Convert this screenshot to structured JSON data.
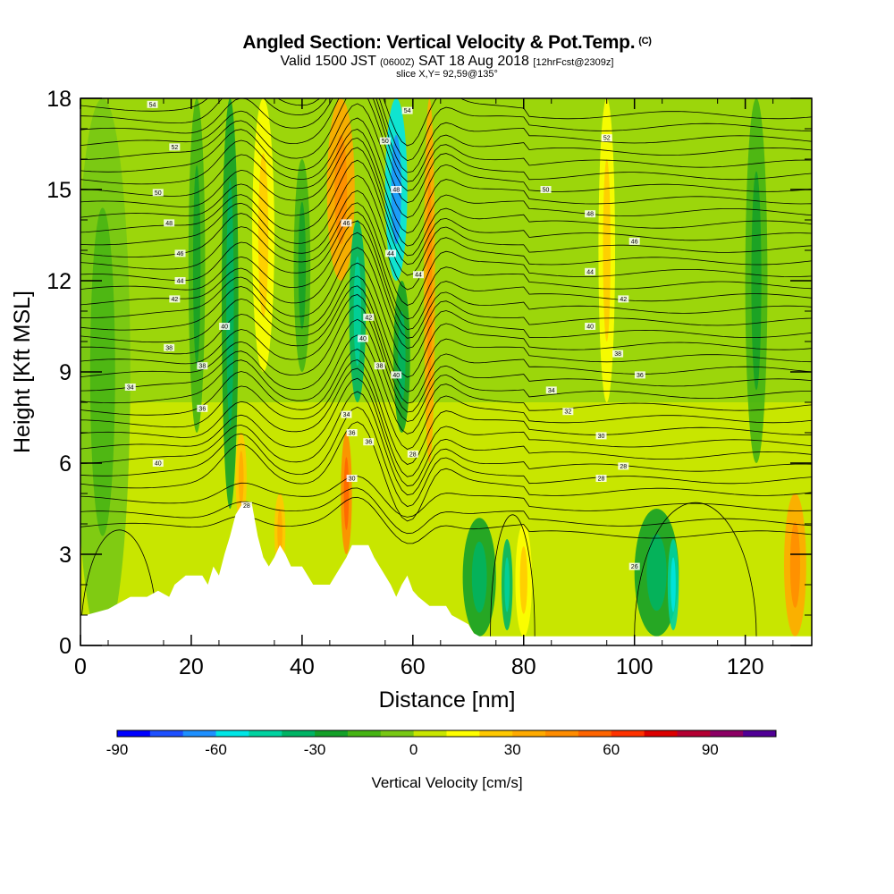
{
  "title": {
    "main": "Angled Section: Vertical Velocity & Pot.Temp.",
    "main_tag": "(C)",
    "valid_prefix": "Valid 1500 JST",
    "valid_zulu": "(0600Z)",
    "valid_date": "SAT 18 Aug 2018",
    "forecast": "[12hrFcst@2309z]",
    "slice": "slice X,Y= 92,59@135°"
  },
  "chart_data": {
    "type": "heatmap",
    "xlabel": "Distance [nm]",
    "ylabel": "Height [Kft MSL]",
    "xlim": [
      0,
      132
    ],
    "ylim": [
      0,
      18
    ],
    "x_ticks": [
      "0",
      "20",
      "40",
      "60",
      "80",
      "100",
      "120"
    ],
    "y_ticks": [
      "0",
      "3",
      "6",
      "9",
      "12",
      "15",
      "18"
    ],
    "colorbar": {
      "label": "Vertical Velocity [cm/s]",
      "range": [
        -90,
        110
      ],
      "step": 10,
      "tick_labels": [
        "-90",
        "-60",
        "-30",
        "0",
        "30",
        "60",
        "90"
      ],
      "colors": [
        "#0000ff",
        "#1e50ff",
        "#1e90ff",
        "#00e6e6",
        "#00d2a0",
        "#00b464",
        "#14a028",
        "#46b414",
        "#78c814",
        "#c8e600",
        "#ffff00",
        "#ffc800",
        "#ffaa00",
        "#ff8c00",
        "#ff6400",
        "#ff3200",
        "#dc0000",
        "#b40032",
        "#8c0064",
        "#500096"
      ]
    },
    "vertical_velocity_columns_cm_s": [
      {
        "x": 4,
        "w": 10,
        "z0": 0,
        "z1": 18,
        "v": -5
      },
      {
        "x": 21,
        "w": 3,
        "z0": 7,
        "z1": 18,
        "v": -20
      },
      {
        "x": 27,
        "w": 3,
        "z0": 4.5,
        "z1": 18,
        "v": -25
      },
      {
        "x": 29,
        "w": 2,
        "z0": 4,
        "z1": 7,
        "v": 25
      },
      {
        "x": 33,
        "w": 4,
        "z0": 9,
        "z1": 18,
        "v": 15
      },
      {
        "x": 36,
        "w": 2,
        "z0": 2.5,
        "z1": 5,
        "v": 25
      },
      {
        "x": 40,
        "w": 3,
        "z0": 9,
        "z1": 16,
        "v": -20
      },
      {
        "x": 47,
        "w": 5,
        "z0": 12,
        "z1": 18,
        "v": 35
      },
      {
        "x": 48,
        "w": 2,
        "z0": 3,
        "z1": 7,
        "v": 45
      },
      {
        "x": 50,
        "w": 3,
        "z0": 8,
        "z1": 14,
        "v": -35
      },
      {
        "x": 57,
        "w": 4,
        "z0": 12,
        "z1": 18,
        "v": -55
      },
      {
        "x": 58,
        "w": 3,
        "z0": 7,
        "z1": 12,
        "v": -25
      },
      {
        "x": 63,
        "w": 2,
        "z0": 6,
        "z1": 18,
        "v": 35
      },
      {
        "x": 72,
        "w": 6,
        "z0": 0.3,
        "z1": 4.2,
        "v": -30
      },
      {
        "x": 77,
        "w": 2,
        "z0": 0.5,
        "z1": 3.5,
        "v": -40
      },
      {
        "x": 80,
        "w": 3,
        "z0": 0.3,
        "z1": 4,
        "v": 15
      },
      {
        "x": 95,
        "w": 3,
        "z0": 8,
        "z1": 18,
        "v": 15
      },
      {
        "x": 104,
        "w": 8,
        "z0": 0.3,
        "z1": 4.5,
        "v": -30
      },
      {
        "x": 107,
        "w": 2,
        "z0": 0.5,
        "z1": 3.5,
        "v": -45
      },
      {
        "x": 122,
        "w": 4,
        "z0": 6,
        "z1": 18,
        "v": -15
      },
      {
        "x": 129,
        "w": 4,
        "z0": 0.3,
        "z1": 5,
        "v": 30
      }
    ],
    "terrain_kft": [
      [
        0,
        1
      ],
      [
        1,
        1
      ],
      [
        5,
        1.2
      ],
      [
        9,
        1.6
      ],
      [
        12,
        1.6
      ],
      [
        14,
        1.8
      ],
      [
        16,
        1.6
      ],
      [
        17,
        2.0
      ],
      [
        19,
        2.3
      ],
      [
        22,
        2.3
      ],
      [
        23,
        2.0
      ],
      [
        24,
        2.6
      ],
      [
        25,
        2.3
      ],
      [
        26,
        3.0
      ],
      [
        27,
        3.6
      ],
      [
        28,
        4.3
      ],
      [
        29,
        4.6
      ],
      [
        31,
        4.6
      ],
      [
        32,
        3.6
      ],
      [
        33,
        2.9
      ],
      [
        34,
        2.6
      ],
      [
        35,
        2.9
      ],
      [
        36,
        3.3
      ],
      [
        37,
        3.0
      ],
      [
        38,
        2.6
      ],
      [
        40,
        2.6
      ],
      [
        41,
        2.3
      ],
      [
        42,
        2.0
      ],
      [
        45,
        2.0
      ],
      [
        46,
        2.3
      ],
      [
        47,
        2.6
      ],
      [
        48,
        2.9
      ],
      [
        49,
        3.3
      ],
      [
        52,
        3.3
      ],
      [
        53,
        2.9
      ],
      [
        54,
        2.6
      ],
      [
        55,
        2.3
      ],
      [
        56,
        2.0
      ],
      [
        57,
        1.6
      ],
      [
        58,
        2.0
      ],
      [
        59,
        2.3
      ],
      [
        60,
        1.8
      ],
      [
        61,
        1.6
      ],
      [
        63,
        1.3
      ],
      [
        66,
        1.3
      ],
      [
        67,
        1.0
      ],
      [
        70,
        0.7
      ],
      [
        71,
        0.4
      ],
      [
        72,
        0.3
      ],
      [
        132,
        0.3
      ]
    ],
    "pot_temp_contours": {
      "z_start_kft": [
        3.9,
        4.3,
        4.8,
        5.3,
        5.7,
        6.1,
        6.5,
        6.9,
        7.3,
        7.7,
        8.1,
        8.5,
        8.9,
        9.3,
        9.7,
        10.1,
        10.5,
        10.9,
        11.3,
        11.7,
        12.1,
        12.5,
        12.9,
        13.3,
        13.7,
        14.1,
        14.5,
        14.9,
        15.3,
        15.7,
        16.1,
        16.5,
        16.9,
        17.3,
        17.7
      ],
      "labels": [
        {
          "x": 14,
          "z": 6.0,
          "t": "40"
        },
        {
          "x": 9,
          "z": 8.5,
          "t": "34"
        },
        {
          "x": 22,
          "z": 7.8,
          "t": "36"
        },
        {
          "x": 22,
          "z": 9.2,
          "t": "38"
        },
        {
          "x": 16,
          "z": 9.8,
          "t": "38"
        },
        {
          "x": 26,
          "z": 10.5,
          "t": "40"
        },
        {
          "x": 17,
          "z": 11.4,
          "t": "42"
        },
        {
          "x": 18,
          "z": 12.0,
          "t": "44"
        },
        {
          "x": 18,
          "z": 12.9,
          "t": "46"
        },
        {
          "x": 16,
          "z": 13.9,
          "t": "48"
        },
        {
          "x": 14,
          "z": 14.9,
          "t": "50"
        },
        {
          "x": 17,
          "z": 16.4,
          "t": "52"
        },
        {
          "x": 13,
          "z": 17.8,
          "t": "54"
        },
        {
          "x": 48,
          "z": 7.6,
          "t": "34"
        },
        {
          "x": 49,
          "z": 7.0,
          "t": "36"
        },
        {
          "x": 52,
          "z": 6.7,
          "t": "36"
        },
        {
          "x": 49,
          "z": 5.5,
          "t": "30"
        },
        {
          "x": 30,
          "z": 4.6,
          "t": "28"
        },
        {
          "x": 51,
          "z": 10.1,
          "t": "40"
        },
        {
          "x": 52,
          "z": 10.8,
          "t": "42"
        },
        {
          "x": 54,
          "z": 9.2,
          "t": "38"
        },
        {
          "x": 57,
          "z": 8.9,
          "t": "40"
        },
        {
          "x": 60,
          "z": 6.3,
          "t": "28"
        },
        {
          "x": 56,
          "z": 12.9,
          "t": "44"
        },
        {
          "x": 61,
          "z": 12.2,
          "t": "44"
        },
        {
          "x": 48,
          "z": 13.9,
          "t": "46"
        },
        {
          "x": 57,
          "z": 15.0,
          "t": "48"
        },
        {
          "x": 55,
          "z": 16.6,
          "t": "50"
        },
        {
          "x": 59,
          "z": 17.6,
          "t": "54"
        },
        {
          "x": 85,
          "z": 8.4,
          "t": "34"
        },
        {
          "x": 88,
          "z": 7.7,
          "t": "32"
        },
        {
          "x": 94,
          "z": 6.9,
          "t": "30"
        },
        {
          "x": 98,
          "z": 5.9,
          "t": "28"
        },
        {
          "x": 94,
          "z": 5.5,
          "t": "28"
        },
        {
          "x": 100,
          "z": 2.6,
          "t": "26"
        },
        {
          "x": 101,
          "z": 8.9,
          "t": "36"
        },
        {
          "x": 97,
          "z": 9.6,
          "t": "38"
        },
        {
          "x": 92,
          "z": 10.5,
          "t": "40"
        },
        {
          "x": 98,
          "z": 11.4,
          "t": "42"
        },
        {
          "x": 92,
          "z": 12.3,
          "t": "44"
        },
        {
          "x": 100,
          "z": 13.3,
          "t": "46"
        },
        {
          "x": 92,
          "z": 14.2,
          "t": "48"
        },
        {
          "x": 84,
          "z": 15.0,
          "t": "50"
        },
        {
          "x": 95,
          "z": 16.7,
          "t": "52"
        }
      ]
    }
  }
}
